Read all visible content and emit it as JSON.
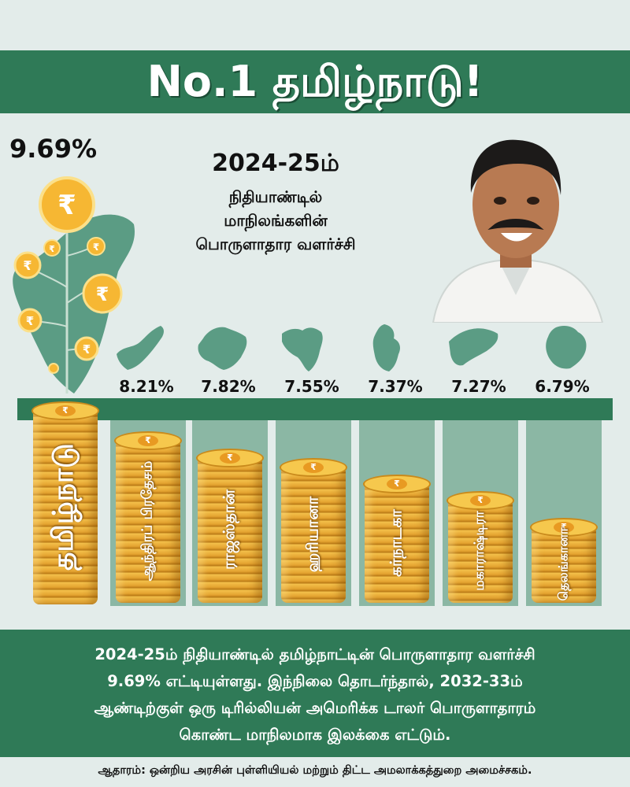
{
  "title": "No.1  தமிழ்நாடு!",
  "tamilnadu": {
    "value": "9.69%",
    "label": "தமிழ்நாடு",
    "level": 9.69
  },
  "subtitle": {
    "line1": "2024-25ம்",
    "line2": "நிதியாண்டில்",
    "line3": "மாநிலங்களின்",
    "line4": "பொருளாதார வளர்ச்சி"
  },
  "states": [
    {
      "label": "ஆந்திரப் பிரதேசம்",
      "value": "8.21%",
      "level": 8.21
    },
    {
      "label": "ராஜஸ்தான்",
      "value": "7.82%",
      "level": 7.82
    },
    {
      "label": "ஹரியானா",
      "value": "7.55%",
      "level": 7.55
    },
    {
      "label": "கர்நாடகா",
      "value": "7.37%",
      "level": 7.37
    },
    {
      "label": "மகாராஷ்டிரா",
      "value": "7.27%",
      "level": 7.27
    },
    {
      "label": "தெலங்கானா",
      "value": "6.79%",
      "level": 6.79
    }
  ],
  "footer": {
    "line1": "2024-25ம் நிதியாண்டில் தமிழ்நாட்டின் பொருளாதார வளர்ச்சி",
    "line2": "9.69% எட்டியுள்ளது. இந்நிலை தொடர்ந்தால், 2032-33ம்",
    "line3": "ஆண்டிற்குள் ஒரு டிரில்லியன் அமெரிக்க டாலர் பொருளாதாரம்",
    "line4": "கொண்ட மாநிலமாக இலக்கை எட்டும்."
  },
  "source": "ஆதாரம்: ஒன்றிய அரசின் புள்ளியியல் மற்றும் திட்ட அமலாக்கத்துறை அமைச்சகம்.",
  "coin_symbol": "₹",
  "colors": {
    "green": "#2f7a57",
    "column": "#8bb7a4",
    "coin": "#f3c04a",
    "map": "#5b9c84",
    "background": "#e3ecea"
  }
}
